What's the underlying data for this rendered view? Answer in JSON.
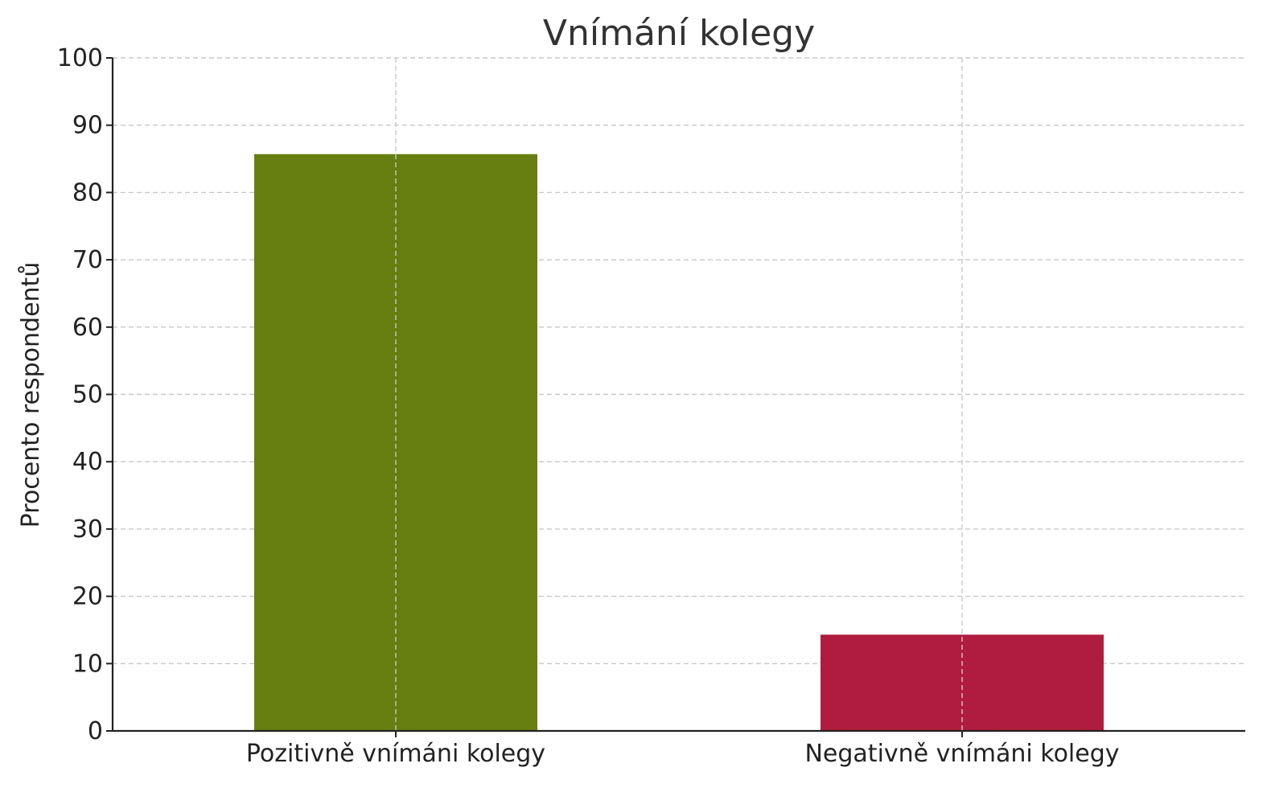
{
  "chart_data": {
    "type": "bar",
    "title": "Vnímání kolegy",
    "xlabel": "",
    "ylabel": "Procento respondentů",
    "categories": [
      "Pozitivně vnímáni kolegy",
      "Negativně vnímáni kolegy"
    ],
    "values": [
      85.7,
      14.3
    ],
    "colors": [
      "#677e11",
      "#b01c3f"
    ],
    "ylim": [
      0,
      100
    ],
    "yticks": [
      "0",
      "10",
      "20",
      "30",
      "40",
      "50",
      "60",
      "70",
      "80",
      "90",
      "100"
    ],
    "grid": true
  }
}
